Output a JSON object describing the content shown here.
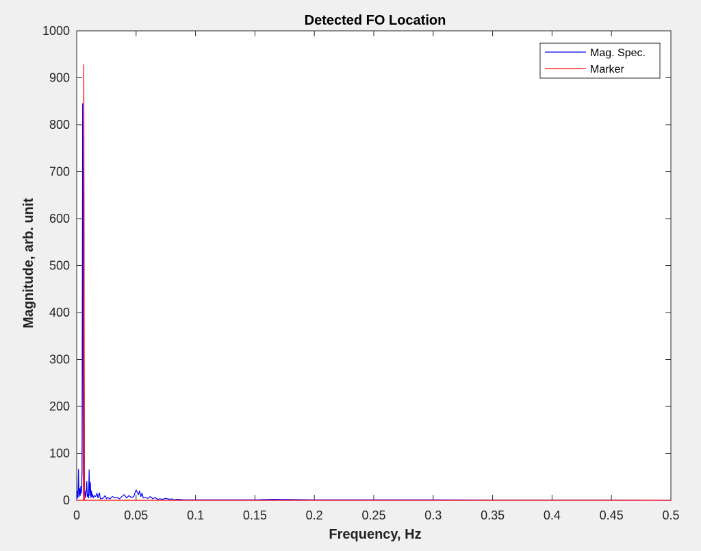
{
  "chart_data": {
    "type": "line",
    "title": "Detected FO Location",
    "xlabel": "Frequency, Hz",
    "ylabel": "Magnitude, arb. unit",
    "xlim": [
      0,
      0.5
    ],
    "ylim": [
      0,
      1000
    ],
    "xticks": [
      0,
      0.05,
      0.1,
      0.15,
      0.2,
      0.25,
      0.3,
      0.35,
      0.4,
      0.45,
      0.5
    ],
    "xtick_labels": [
      "0",
      "0.05",
      "0.1",
      "0.15",
      "0.2",
      "0.25",
      "0.3",
      "0.35",
      "0.4",
      "0.45",
      "0.5"
    ],
    "yticks": [
      0,
      100,
      200,
      300,
      400,
      500,
      600,
      700,
      800,
      900,
      1000
    ],
    "ytick_labels": [
      "0",
      "100",
      "200",
      "300",
      "400",
      "500",
      "600",
      "700",
      "800",
      "900",
      "1000"
    ],
    "grid": false,
    "legend_position": "top-right",
    "series": [
      {
        "name": "Mag. Spec.",
        "color": "#0000ff",
        "x": [
          0,
          0.0005,
          0.001,
          0.0015,
          0.002,
          0.0025,
          0.003,
          0.0035,
          0.004,
          0.0045,
          0.005,
          0.0055,
          0.006,
          0.0065,
          0.007,
          0.0075,
          0.008,
          0.0085,
          0.009,
          0.0095,
          0.01,
          0.0105,
          0.011,
          0.0115,
          0.012,
          0.0125,
          0.013,
          0.0135,
          0.014,
          0.015,
          0.016,
          0.017,
          0.018,
          0.019,
          0.02,
          0.022,
          0.024,
          0.025,
          0.026,
          0.028,
          0.03,
          0.032,
          0.034,
          0.036,
          0.038,
          0.04,
          0.042,
          0.044,
          0.046,
          0.048,
          0.05,
          0.052,
          0.053,
          0.054,
          0.055,
          0.056,
          0.058,
          0.06,
          0.062,
          0.064,
          0.066,
          0.068,
          0.07,
          0.072,
          0.075,
          0.078,
          0.08,
          0.082,
          0.085,
          0.09,
          0.1,
          0.12,
          0.15,
          0.165,
          0.2,
          0.25,
          0.3,
          0.35,
          0.4,
          0.45,
          0.5
        ],
        "y": [
          0,
          20,
          5,
          66,
          8,
          25,
          10,
          30,
          15,
          60,
          845,
          30,
          710,
          10,
          20,
          5,
          15,
          40,
          8,
          12,
          5,
          65,
          10,
          38,
          5,
          20,
          8,
          12,
          5,
          10,
          8,
          15,
          5,
          16,
          3,
          4,
          10,
          3,
          6,
          3,
          8,
          5,
          6,
          3,
          8,
          12,
          5,
          10,
          6,
          8,
          22,
          12,
          20,
          8,
          15,
          5,
          6,
          4,
          8,
          3,
          6,
          2,
          3,
          2,
          4,
          2,
          3,
          1,
          2,
          1,
          1,
          1,
          1,
          2,
          1,
          1,
          1,
          0.5,
          0.5,
          0.5,
          0
        ]
      },
      {
        "name": "Marker",
        "color": "#ff0000",
        "x": [
          0,
          0.0055,
          0.006,
          0.0065,
          0.5
        ],
        "y": [
          0,
          0,
          928,
          0,
          0
        ]
      }
    ]
  }
}
